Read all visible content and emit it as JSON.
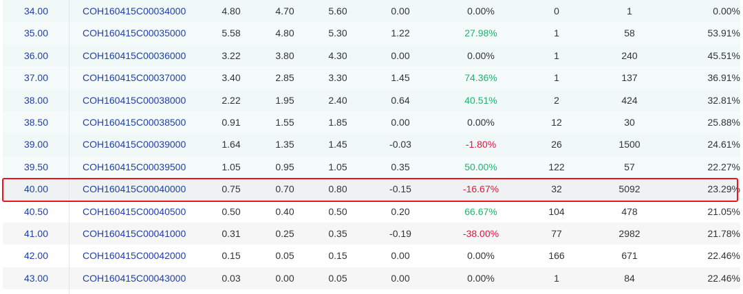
{
  "colors": {
    "link": "#1f3ea8",
    "positive": "#21b270",
    "negative": "#e0143c",
    "highlight_border": "#e8161b"
  },
  "rows": [
    {
      "strike": "34.00",
      "symbol": "COH160415C00034000",
      "last": "4.80",
      "bid": "4.70",
      "ask": "5.60",
      "change": "0.00",
      "pct": "0.00%",
      "volume": "0",
      "open_interest": "1",
      "iv": "0.00%"
    },
    {
      "strike": "35.00",
      "symbol": "COH160415C00035000",
      "last": "5.58",
      "bid": "4.80",
      "ask": "5.30",
      "change": "1.22",
      "pct": "27.98%",
      "volume": "1",
      "open_interest": "58",
      "iv": "53.91%"
    },
    {
      "strike": "36.00",
      "symbol": "COH160415C00036000",
      "last": "3.22",
      "bid": "3.80",
      "ask": "4.30",
      "change": "0.00",
      "pct": "0.00%",
      "volume": "1",
      "open_interest": "240",
      "iv": "45.51%"
    },
    {
      "strike": "37.00",
      "symbol": "COH160415C00037000",
      "last": "3.40",
      "bid": "2.85",
      "ask": "3.30",
      "change": "1.45",
      "pct": "74.36%",
      "volume": "1",
      "open_interest": "137",
      "iv": "36.91%"
    },
    {
      "strike": "38.00",
      "symbol": "COH160415C00038000",
      "last": "2.22",
      "bid": "1.95",
      "ask": "2.40",
      "change": "0.64",
      "pct": "40.51%",
      "volume": "2",
      "open_interest": "424",
      "iv": "32.81%"
    },
    {
      "strike": "38.50",
      "symbol": "COH160415C00038500",
      "last": "0.91",
      "bid": "1.55",
      "ask": "1.85",
      "change": "0.00",
      "pct": "0.00%",
      "volume": "12",
      "open_interest": "30",
      "iv": "25.88%"
    },
    {
      "strike": "39.00",
      "symbol": "COH160415C00039000",
      "last": "1.64",
      "bid": "1.35",
      "ask": "1.45",
      "change": "-0.03",
      "pct": "-1.80%",
      "volume": "26",
      "open_interest": "1500",
      "iv": "24.61%"
    },
    {
      "strike": "39.50",
      "symbol": "COH160415C00039500",
      "last": "1.05",
      "bid": "0.95",
      "ask": "1.05",
      "change": "0.35",
      "pct": "50.00%",
      "volume": "122",
      "open_interest": "57",
      "iv": "22.27%"
    },
    {
      "strike": "40.00",
      "symbol": "COH160415C00040000",
      "last": "0.75",
      "bid": "0.70",
      "ask": "0.80",
      "change": "-0.15",
      "pct": "-16.67%",
      "volume": "32",
      "open_interest": "5092",
      "iv": "23.29%"
    },
    {
      "strike": "40.50",
      "symbol": "COH160415C00040500",
      "last": "0.50",
      "bid": "0.40",
      "ask": "0.50",
      "change": "0.20",
      "pct": "66.67%",
      "volume": "104",
      "open_interest": "478",
      "iv": "21.05%"
    },
    {
      "strike": "41.00",
      "symbol": "COH160415C00041000",
      "last": "0.31",
      "bid": "0.25",
      "ask": "0.35",
      "change": "-0.19",
      "pct": "-38.00%",
      "volume": "77",
      "open_interest": "2982",
      "iv": "21.78%"
    },
    {
      "strike": "42.00",
      "symbol": "COH160415C00042000",
      "last": "0.15",
      "bid": "0.05",
      "ask": "0.15",
      "change": "0.00",
      "pct": "0.00%",
      "volume": "166",
      "open_interest": "671",
      "iv": "22.46%"
    },
    {
      "strike": "43.00",
      "symbol": "COH160415C00043000",
      "last": "0.03",
      "bid": "0.00",
      "ask": "0.05",
      "change": "0.00",
      "pct": "0.00%",
      "volume": "1",
      "open_interest": "84",
      "iv": "22.46%"
    }
  ]
}
